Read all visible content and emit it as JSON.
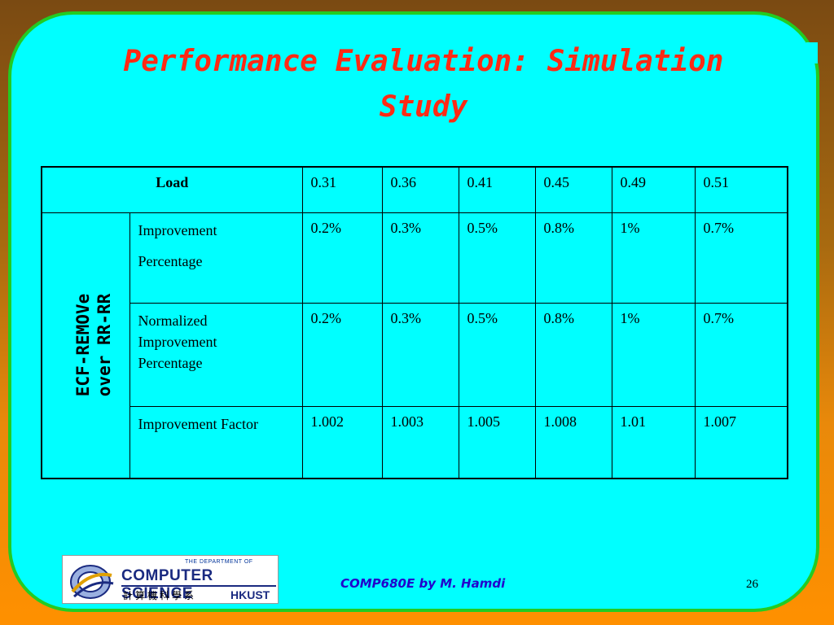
{
  "slide": {
    "title": "Performance Evaluation: Simulation Study",
    "footer": "COMP680E by M. Hamdi",
    "page_number": "26"
  },
  "table": {
    "load_label": "Load",
    "loads": [
      "0.31",
      "0.36",
      "0.41",
      "0.45",
      "0.49",
      "0.51"
    ],
    "group_label_line1": "ECF-REMOVe",
    "group_label_line2": "over RR-RR",
    "rows": [
      {
        "label_line1": "Improvement",
        "label_line2": "Percentage",
        "values": [
          "0.2%",
          "0.3%",
          "0.5%",
          "0.8%",
          "1%",
          "0.7%"
        ]
      },
      {
        "label_line1": "Normalized",
        "label_line2": "Improvement",
        "label_line3": "Percentage",
        "values": [
          "0.2%",
          "0.3%",
          "0.5%",
          "0.8%",
          "1%",
          "0.7%"
        ]
      },
      {
        "label_line1": "Improvement Factor",
        "values": [
          "1.002",
          "1.003",
          "1.005",
          "1.008",
          "1.01",
          "1.007"
        ]
      }
    ]
  },
  "logo": {
    "dept_line": "THE DEPARTMENT OF",
    "name": "COMPUTER SCIENCE",
    "cjk": "計算機科學系",
    "short": "HKUST"
  },
  "colors": {
    "panel": "#00ffff",
    "panel_border": "#22cc22",
    "title": "#ff2a14",
    "footer": "#2200cc"
  }
}
